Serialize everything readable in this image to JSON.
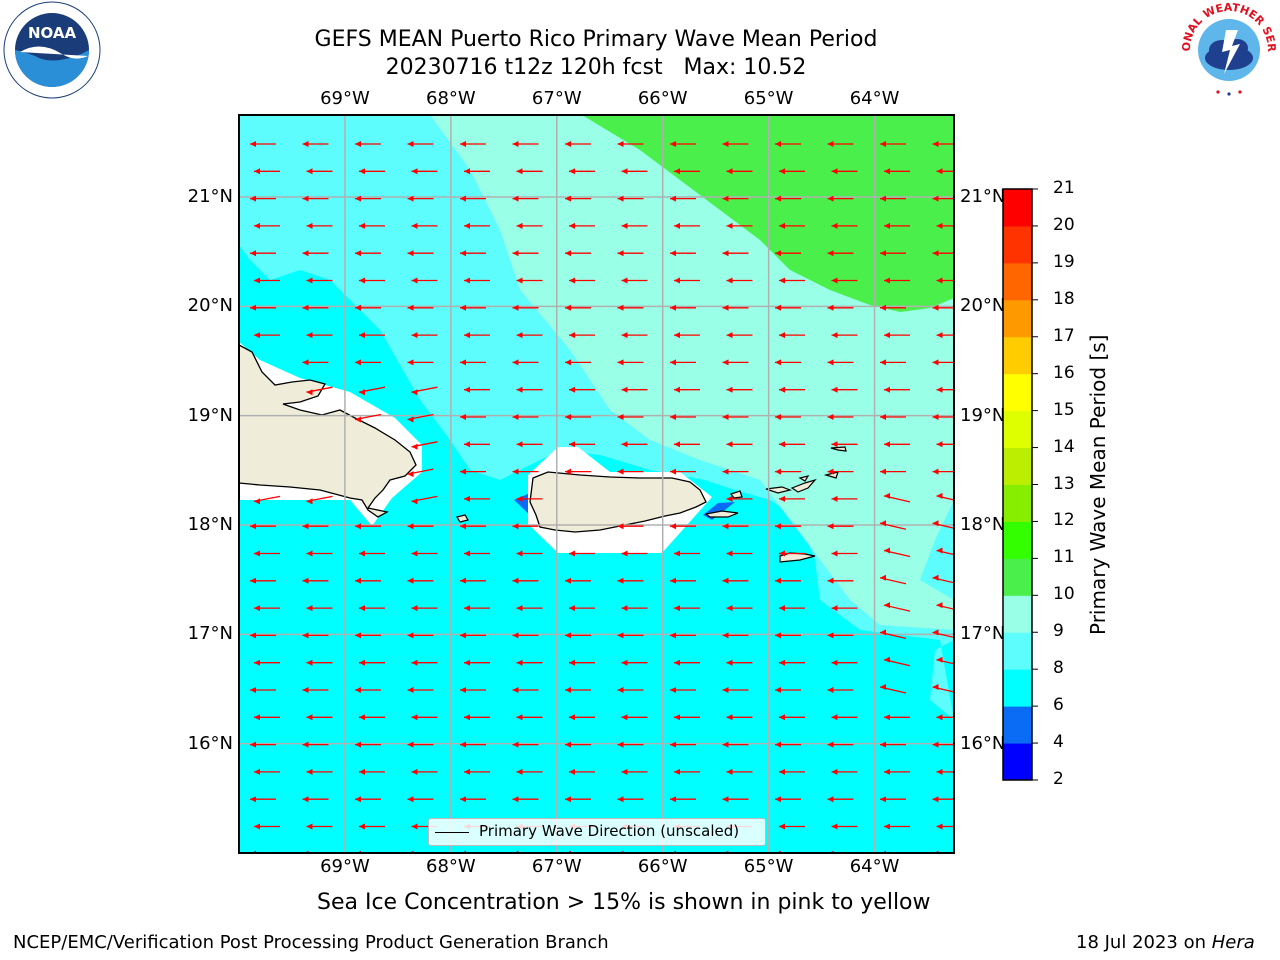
{
  "title_line1": "GEFS MEAN Puerto Rico Primary Wave Mean Period",
  "title_line2": "20230716 t12z 120h fcst   Max: 10.52",
  "lon_ticks": [
    "69°W",
    "68°W",
    "67°W",
    "66°W",
    "65°W",
    "64°W"
  ],
  "lat_ticks": [
    "21°N",
    "20°N",
    "19°N",
    "18°N",
    "17°N",
    "16°N"
  ],
  "legend_label": "Primary Wave Direction (unscaled)",
  "subtitle": "Sea Ice Concentration > 15% is shown in pink to yellow",
  "footer_left": "NCEP/EMC/Verification Post Processing Product Generation Branch",
  "footer_right_prefix": "18 Jul 2023 on ",
  "footer_right_host": "Hera",
  "logos": {
    "left": {
      "name": "noaa-logo",
      "text": "NOAA"
    },
    "right": {
      "name": "nws-logo",
      "text": "NATIONAL WEATHER SERVICE"
    }
  },
  "colorbar": {
    "title": "Primary Wave Mean Period [s]",
    "levels": [
      2,
      4,
      6,
      8,
      9,
      10,
      11,
      12,
      13,
      14,
      15,
      16,
      17,
      18,
      19,
      20,
      21
    ],
    "colors": [
      "#0000ff",
      "#0a6cf5",
      "#00ffff",
      "#5efdfd",
      "#99ffe6",
      "#4bef4b",
      "#33ff00",
      "#88ee00",
      "#bbee00",
      "#ddff00",
      "#ffff00",
      "#ffcc00",
      "#ff9900",
      "#ff6600",
      "#ff3300",
      "#ff0000"
    ]
  },
  "map": {
    "lon_range": [
      -70.0,
      -63.25
    ],
    "lat_range": [
      15.0,
      21.75
    ],
    "field_colors": {
      "low": "#00ffff",
      "mid": "#5efdfd",
      "high": "#99ffe6",
      "top": "#4bef4b",
      "very_low": "#0a6cf5"
    },
    "land_color": "#efedd9",
    "mask_color": "#ffffff",
    "arrow_color": "#ff0000",
    "grid_color": "#b0b0b0",
    "wave_direction": "westward"
  }
}
